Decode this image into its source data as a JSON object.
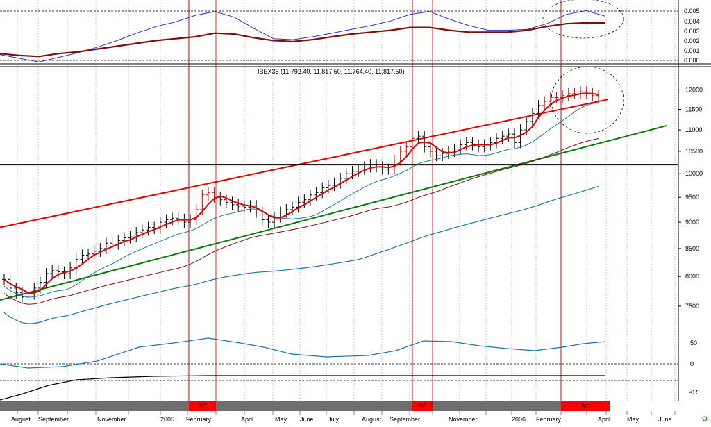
{
  "chart_data": {
    "type": "line",
    "title": "IBEX35 (11,792.40, 11,817.50, 11,764.40, 11,817.50)",
    "price_ticks": [
      "12000",
      "11500",
      "11000",
      "10500",
      "10000",
      "9500",
      "9000",
      "8500",
      "8000",
      "7500"
    ],
    "price_axis": {
      "scale": "log",
      "range": [
        7200,
        12300
      ]
    },
    "top_ticks": [
      "0.005",
      "0.004",
      "0.003",
      "0.002",
      "0.001",
      "0.000"
    ],
    "top_axis": {
      "range": [
        0,
        0.0058
      ]
    },
    "lower_ticks": [
      "50",
      "0",
      "-0.5"
    ],
    "x_labels": [
      "August",
      "September",
      "November",
      "2005",
      "February",
      "April",
      "May",
      "June",
      "July",
      "August",
      "September",
      "November",
      "2006",
      "February",
      "April",
      "May",
      "June"
    ],
    "sc_label": "SC",
    "ohlc_close": [
      7950,
      7800,
      7720,
      7650,
      7700,
      7800,
      7900,
      8050,
      8100,
      8080,
      8050,
      8150,
      8300,
      8380,
      8400,
      8450,
      8500,
      8600,
      8580,
      8650,
      8700,
      8720,
      8800,
      8850,
      8900,
      8880,
      9000,
      9050,
      9080,
      9060,
      9000,
      9050,
      9250,
      9550,
      9600,
      9500,
      9450,
      9400,
      9350,
      9320,
      9300,
      9330,
      9200,
      9050,
      9000,
      9100,
      9200,
      9250,
      9300,
      9400,
      9450,
      9550,
      9600,
      9700,
      9750,
      9800,
      9900,
      10000,
      10050,
      10100,
      10150,
      10200,
      10150,
      10100,
      10100,
      10300,
      10500,
      10600,
      10800,
      10850,
      10600,
      10500,
      10400,
      10450,
      10500,
      10550,
      10650,
      10700,
      10650,
      10600,
      10650,
      10700,
      10800,
      10850,
      10900,
      10700,
      11000,
      11200,
      11400,
      11600,
      11700,
      11800,
      11800,
      11850,
      11900,
      11900,
      11950,
      11900,
      11850,
      11817.5
    ],
    "series": [
      {
        "name": "IBEX35",
        "color": "#000000"
      },
      {
        "color": "#dd0000"
      },
      {
        "color": "#1a7aa0"
      },
      {
        "color": "#7a1010"
      },
      {
        "color": "#1a7aa0"
      },
      {
        "color": "#1a7aa0"
      },
      {
        "color": "#000000"
      }
    ],
    "top_series": [
      {
        "color": "#3030c0",
        "values": [
          0.0007,
          0.0003,
          -0.0001,
          0.0004,
          0.0009,
          0.0015,
          0.0022,
          0.003,
          0.0037,
          0.0042,
          0.0049,
          0.0053,
          0.0047,
          0.0035,
          0.0024,
          0.0023,
          0.0026,
          0.003,
          0.0034,
          0.0038,
          0.0043,
          0.005,
          0.0053,
          0.0045,
          0.0038,
          0.0033,
          0.0033,
          0.0034,
          0.004,
          0.005,
          0.0054,
          0.0048
        ]
      },
      {
        "color": "#7a1010",
        "values": [
          0.0008,
          0.0006,
          0.0005,
          0.0008,
          0.001,
          0.0013,
          0.0016,
          0.0019,
          0.0022,
          0.0024,
          0.0026,
          0.003,
          0.0029,
          0.0025,
          0.0022,
          0.0021,
          0.0023,
          0.0026,
          0.0029,
          0.0031,
          0.0033,
          0.0036,
          0.0036,
          0.0033,
          0.0031,
          0.0031,
          0.0031,
          0.0033,
          0.0037,
          0.004,
          0.0041,
          0.0041
        ]
      }
    ],
    "trendlines": [
      {
        "color": "#dd0000",
        "from": 8900,
        "to": 11900
      },
      {
        "color": "#0a7a0a",
        "from": 7600,
        "to": 11100
      },
      {
        "color": "#000000",
        "from": 10200,
        "to": 10200
      }
    ],
    "grid": true,
    "legend": "none"
  }
}
